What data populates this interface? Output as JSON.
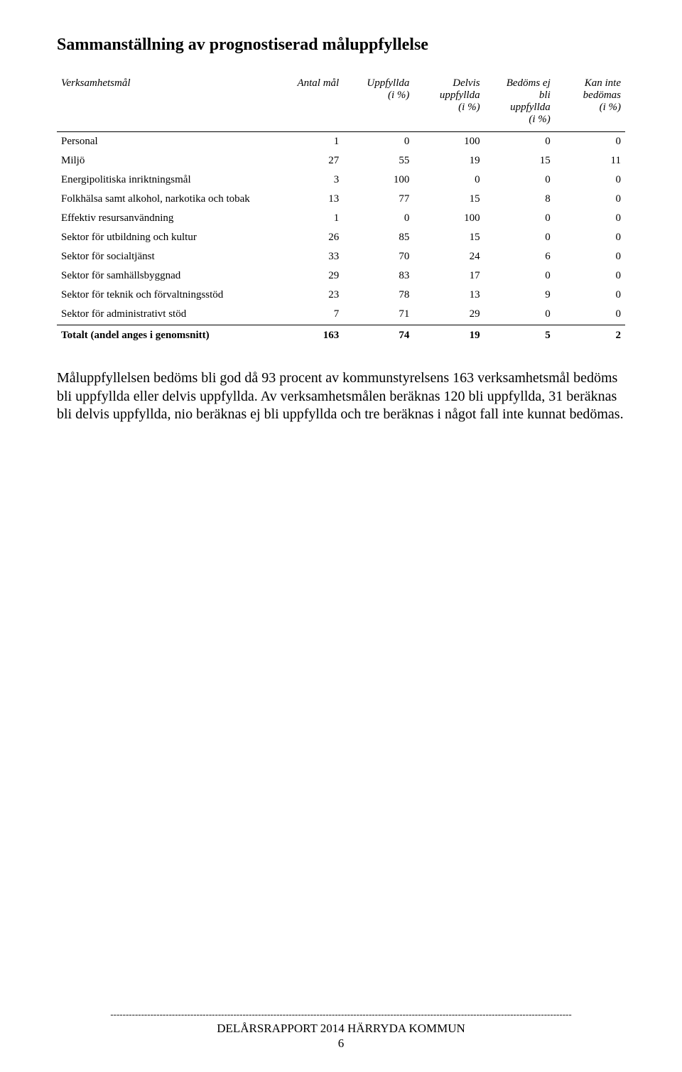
{
  "heading": "Sammanställning av prognostiserad måluppfyllelse",
  "table": {
    "columns": [
      "Verksamhetsmål",
      "Antal mål",
      "Uppfyllda\n(i %)",
      "Delvis\nuppfyllda\n(i %)",
      "Bedöms ej\nbli\nuppfyllda\n(i %)",
      "Kan inte\nbedömas\n(i %)"
    ],
    "rows": [
      {
        "label": "Personal",
        "vals": [
          "1",
          "0",
          "100",
          "0",
          "0"
        ]
      },
      {
        "label": "Miljö",
        "vals": [
          "27",
          "55",
          "19",
          "15",
          "11"
        ]
      },
      {
        "label": "Energipolitiska inriktningsmål",
        "vals": [
          "3",
          "100",
          "0",
          "0",
          "0"
        ]
      },
      {
        "label": "Folkhälsa samt alkohol, narkotika och tobak",
        "vals": [
          "13",
          "77",
          "15",
          "8",
          "0"
        ]
      },
      {
        "label": "Effektiv resursanvändning",
        "vals": [
          "1",
          "0",
          "100",
          "0",
          "0"
        ]
      },
      {
        "label": "Sektor för utbildning och kultur",
        "vals": [
          "26",
          "85",
          "15",
          "0",
          "0"
        ]
      },
      {
        "label": "Sektor för socialtjänst",
        "vals": [
          "33",
          "70",
          "24",
          "6",
          "0"
        ]
      },
      {
        "label": "Sektor för samhällsbyggnad",
        "vals": [
          "29",
          "83",
          "17",
          "0",
          "0"
        ]
      },
      {
        "label": "Sektor för teknik och förvaltningsstöd",
        "vals": [
          "23",
          "78",
          "13",
          "9",
          "0"
        ]
      },
      {
        "label": "Sektor för administrativt stöd",
        "vals": [
          "7",
          "71",
          "29",
          "0",
          "0"
        ]
      }
    ],
    "total": {
      "label": "Totalt (andel anges i genomsnitt)",
      "vals": [
        "163",
        "74",
        "19",
        "5",
        "2"
      ]
    }
  },
  "paragraph": "Måluppfyllelsen bedöms bli god då 93 procent av kommunstyrelsens 163 verksamhetsmål bedöms bli uppfyllda eller delvis uppfyllda. Av verksamhetsmålen beräknas 120 bli uppfyllda, 31 beräknas bli delvis uppfyllda, nio beräknas ej bli uppfyllda och tre beräknas i något fall inte kunnat bedömas.",
  "footer": {
    "title": "DELÅRSRAPPORT 2014  HÄRRYDA KOMMUN",
    "page": "6"
  },
  "style": {
    "font_family": "Times New Roman",
    "heading_fontsize": 24,
    "table_fontsize": 15,
    "para_fontsize": 20,
    "text_color": "#000000",
    "background_color": "#ffffff",
    "border_color": "#000000"
  }
}
